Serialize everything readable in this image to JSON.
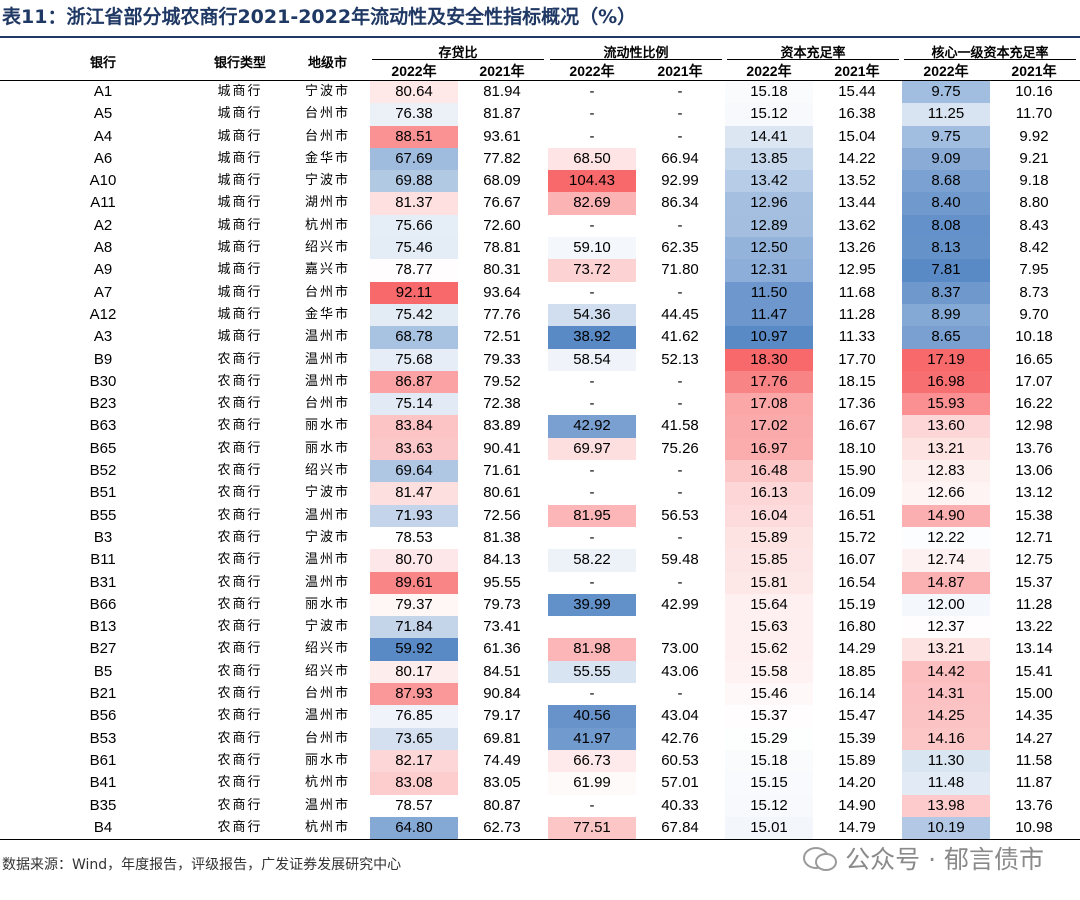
{
  "title": "表11：浙江省部分城农商行2021-2022年流动性及安全性指标概况（%）",
  "headers": {
    "bank": "银行",
    "type": "银行类型",
    "city": "地级市",
    "groups": [
      "存贷比",
      "流动性比例",
      "资本充足率",
      "核心一级资本充足率"
    ],
    "years": [
      "2022年",
      "2021年"
    ]
  },
  "colors": {
    "high": "#f8696b",
    "low": "#5a8ac6",
    "mid": "#ffffff",
    "title": "#1f3864"
  },
  "rows": [
    [
      "A1",
      "城商行",
      "宁波市",
      "80.64",
      "81.94",
      "-",
      "-",
      "15.18",
      "15.44",
      "9.75",
      "10.16"
    ],
    [
      "A5",
      "城商行",
      "台州市",
      "76.38",
      "81.87",
      "-",
      "-",
      "15.12",
      "16.38",
      "11.25",
      "11.70"
    ],
    [
      "A4",
      "城商行",
      "台州市",
      "88.51",
      "93.61",
      "-",
      "-",
      "14.41",
      "15.04",
      "9.75",
      "9.92"
    ],
    [
      "A6",
      "城商行",
      "金华市",
      "67.69",
      "77.82",
      "68.50",
      "66.94",
      "13.85",
      "14.22",
      "9.09",
      "9.21"
    ],
    [
      "A10",
      "城商行",
      "宁波市",
      "69.88",
      "68.09",
      "104.43",
      "92.99",
      "13.42",
      "13.52",
      "8.68",
      "9.18"
    ],
    [
      "A11",
      "城商行",
      "湖州市",
      "81.37",
      "76.67",
      "82.69",
      "86.34",
      "12.96",
      "13.44",
      "8.40",
      "8.80"
    ],
    [
      "A2",
      "城商行",
      "杭州市",
      "75.66",
      "72.60",
      "-",
      "-",
      "12.89",
      "13.62",
      "8.08",
      "8.43"
    ],
    [
      "A8",
      "城商行",
      "绍兴市",
      "75.46",
      "78.81",
      "59.10",
      "62.35",
      "12.50",
      "13.26",
      "8.13",
      "8.42"
    ],
    [
      "A9",
      "城商行",
      "嘉兴市",
      "78.77",
      "80.31",
      "73.72",
      "71.80",
      "12.31",
      "12.95",
      "7.81",
      "7.95"
    ],
    [
      "A7",
      "城商行",
      "台州市",
      "92.11",
      "93.64",
      "-",
      "-",
      "11.50",
      "11.68",
      "8.37",
      "8.73"
    ],
    [
      "A12",
      "城商行",
      "金华市",
      "75.42",
      "77.76",
      "54.36",
      "44.45",
      "11.47",
      "11.28",
      "8.99",
      "9.70"
    ],
    [
      "A3",
      "城商行",
      "温州市",
      "68.78",
      "72.51",
      "38.92",
      "41.62",
      "10.97",
      "11.33",
      "8.65",
      "10.18"
    ],
    [
      "B9",
      "农商行",
      "温州市",
      "75.68",
      "79.33",
      "58.54",
      "52.13",
      "18.30",
      "17.70",
      "17.19",
      "16.65"
    ],
    [
      "B30",
      "农商行",
      "温州市",
      "86.87",
      "79.52",
      "-",
      "-",
      "17.76",
      "18.15",
      "16.98",
      "17.07"
    ],
    [
      "B23",
      "农商行",
      "台州市",
      "75.14",
      "72.38",
      "-",
      "-",
      "17.08",
      "17.36",
      "15.93",
      "16.22"
    ],
    [
      "B63",
      "农商行",
      "丽水市",
      "83.84",
      "83.89",
      "42.92",
      "41.58",
      "17.02",
      "16.67",
      "13.60",
      "12.98"
    ],
    [
      "B65",
      "农商行",
      "丽水市",
      "83.63",
      "90.41",
      "69.97",
      "75.26",
      "16.97",
      "18.10",
      "13.21",
      "13.76"
    ],
    [
      "B52",
      "农商行",
      "绍兴市",
      "69.64",
      "71.61",
      "-",
      "-",
      "16.48",
      "15.90",
      "12.83",
      "13.06"
    ],
    [
      "B51",
      "农商行",
      "宁波市",
      "81.47",
      "80.61",
      "-",
      "-",
      "16.13",
      "16.09",
      "12.66",
      "13.12"
    ],
    [
      "B55",
      "农商行",
      "温州市",
      "71.93",
      "72.56",
      "81.95",
      "56.53",
      "16.04",
      "16.51",
      "14.90",
      "15.38"
    ],
    [
      "B3",
      "农商行",
      "宁波市",
      "78.53",
      "81.38",
      "-",
      "-",
      "15.89",
      "15.72",
      "12.22",
      "12.71"
    ],
    [
      "B11",
      "农商行",
      "温州市",
      "80.70",
      "84.13",
      "58.22",
      "59.48",
      "15.85",
      "16.07",
      "12.74",
      "12.75"
    ],
    [
      "B31",
      "农商行",
      "温州市",
      "89.61",
      "95.55",
      "-",
      "-",
      "15.81",
      "16.54",
      "14.87",
      "15.37"
    ],
    [
      "B66",
      "农商行",
      "丽水市",
      "79.37",
      "79.73",
      "39.99",
      "42.99",
      "15.64",
      "15.19",
      "12.00",
      "11.28"
    ],
    [
      "B13",
      "农商行",
      "宁波市",
      "71.84",
      "73.41",
      "",
      "",
      "15.63",
      "16.80",
      "12.37",
      "13.22"
    ],
    [
      "B27",
      "农商行",
      "绍兴市",
      "59.92",
      "61.36",
      "81.98",
      "73.00",
      "15.62",
      "14.29",
      "13.21",
      "13.14"
    ],
    [
      "B5",
      "农商行",
      "绍兴市",
      "80.17",
      "84.51",
      "55.55",
      "43.06",
      "15.58",
      "18.85",
      "14.42",
      "15.41"
    ],
    [
      "B21",
      "农商行",
      "台州市",
      "87.93",
      "90.84",
      "-",
      "-",
      "15.46",
      "16.14",
      "14.31",
      "15.00"
    ],
    [
      "B56",
      "农商行",
      "温州市",
      "76.85",
      "79.17",
      "40.56",
      "43.04",
      "15.37",
      "15.47",
      "14.25",
      "14.35"
    ],
    [
      "B53",
      "农商行",
      "台州市",
      "73.65",
      "69.81",
      "41.97",
      "42.76",
      "15.29",
      "15.39",
      "14.16",
      "14.27"
    ],
    [
      "B61",
      "农商行",
      "丽水市",
      "82.17",
      "74.49",
      "66.73",
      "60.53",
      "15.18",
      "15.89",
      "11.30",
      "11.58"
    ],
    [
      "B41",
      "农商行",
      "杭州市",
      "83.08",
      "83.05",
      "61.99",
      "57.01",
      "15.15",
      "14.20",
      "11.48",
      "11.87"
    ],
    [
      "B35",
      "农商行",
      "温州市",
      "78.57",
      "80.87",
      "-",
      "40.33",
      "15.12",
      "14.90",
      "13.98",
      "13.76"
    ],
    [
      "B4",
      "农商行",
      "杭州市",
      "64.80",
      "62.73",
      "77.51",
      "67.84",
      "15.01",
      "14.79",
      "10.19",
      "10.98"
    ]
  ],
  "footer": "数据来源：Wind，年度报告，评级报告，广发证券发展研究中心",
  "watermark": "公众号 · 郁言债市"
}
